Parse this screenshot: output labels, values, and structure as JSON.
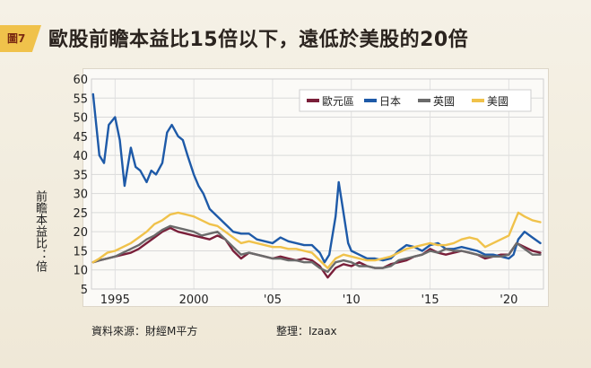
{
  "header": {
    "figure_tag": "圖7",
    "title": "歐股前瞻本益比15倍以下，遠低於美股的20倍"
  },
  "footer": {
    "source": "資料來源：財經M平方",
    "editor": "整理：Izaax"
  },
  "chart_data": {
    "type": "line",
    "title": "歐股前瞻本益比15倍以下，遠低於美股的20倍",
    "ylabel": "前瞻本益比：倍",
    "xlabel": "",
    "ylim": [
      5,
      60
    ],
    "xlim": [
      1993.5,
      2022.2
    ],
    "yticks": [
      5,
      10,
      15,
      20,
      25,
      30,
      35,
      40,
      45,
      50,
      55,
      60
    ],
    "xticks": [
      {
        "value": 1995,
        "label": "1995"
      },
      {
        "value": 2000,
        "label": "2000"
      },
      {
        "value": 2005,
        "label": "'05"
      },
      {
        "value": 2010,
        "label": "'10"
      },
      {
        "value": 2015,
        "label": "'15"
      },
      {
        "value": 2020,
        "label": "'20"
      }
    ],
    "grid": true,
    "legend_position": "top-right",
    "series": [
      {
        "name": "歐元區",
        "color": "#7a1f3a",
        "x": [
          1993.6,
          1994,
          1994.5,
          1995,
          1995.5,
          1996,
          1996.5,
          1997,
          1997.5,
          1998,
          1998.5,
          1999,
          1999.5,
          2000,
          2000.5,
          2001,
          2001.5,
          2002,
          2002.5,
          2003,
          2003.5,
          2004,
          2004.5,
          2005,
          2005.5,
          2006,
          2006.5,
          2007,
          2007.5,
          2008,
          2008.5,
          2009,
          2009.5,
          2010,
          2010.5,
          2011,
          2011.5,
          2012,
          2012.5,
          2013,
          2013.5,
          2014,
          2014.5,
          2015,
          2015.5,
          2016,
          2016.5,
          2017,
          2017.5,
          2018,
          2018.5,
          2019,
          2019.5,
          2020,
          2020.5,
          2021,
          2021.5,
          2022
        ],
        "values": [
          12,
          12.5,
          13,
          13.5,
          14,
          14.5,
          15.5,
          17,
          18.5,
          20,
          21,
          20,
          19.5,
          19,
          18.5,
          18,
          19,
          18,
          15,
          13,
          14.5,
          14,
          13.5,
          13,
          13.5,
          13,
          12.5,
          13,
          12.5,
          11,
          8,
          10.5,
          11.5,
          11,
          12,
          11,
          10.5,
          10.5,
          11.5,
          12,
          12.5,
          13.5,
          14,
          15.5,
          14.5,
          14,
          14.5,
          15,
          14.5,
          14,
          13,
          13.5,
          14,
          14,
          17,
          16,
          15,
          14.5
        ]
      },
      {
        "name": "日本",
        "color": "#1e5aa8",
        "x": [
          1993.6,
          1993.8,
          1994,
          1994.3,
          1994.6,
          1995,
          1995.3,
          1995.6,
          1996,
          1996.3,
          1996.6,
          1997,
          1997.3,
          1997.6,
          1998,
          1998.3,
          1998.6,
          1999,
          1999.3,
          1999.6,
          2000,
          2000.3,
          2000.6,
          2001,
          2001.5,
          2002,
          2002.5,
          2003,
          2003.5,
          2004,
          2004.5,
          2005,
          2005.5,
          2006,
          2006.5,
          2007,
          2007.5,
          2008,
          2008.3,
          2008.6,
          2009,
          2009.2,
          2009.5,
          2009.8,
          2010,
          2010.5,
          2011,
          2011.5,
          2012,
          2012.5,
          2013,
          2013.5,
          2014,
          2014.5,
          2015,
          2015.5,
          2016,
          2016.5,
          2017,
          2017.5,
          2018,
          2018.5,
          2019,
          2019.5,
          2020,
          2020.3,
          2020.6,
          2021,
          2021.5,
          2022
        ],
        "values": [
          56,
          48,
          40,
          38,
          48,
          50,
          44,
          32,
          42,
          37,
          36,
          33,
          36,
          35,
          38,
          46,
          48,
          45,
          44,
          40,
          35,
          32,
          30,
          26,
          24,
          22,
          20,
          19.5,
          19.5,
          18,
          17.5,
          17,
          18.5,
          17.5,
          17,
          16.5,
          16.5,
          14.5,
          12,
          14,
          24,
          33,
          25,
          17,
          15,
          14,
          13,
          13,
          12.5,
          13,
          15,
          16.5,
          16,
          15,
          16.5,
          17,
          15.5,
          15.5,
          16,
          15.5,
          15,
          14,
          14,
          13.5,
          13,
          14,
          18,
          20,
          18.5,
          17
        ]
      },
      {
        "name": "英國",
        "color": "#6b6b6b",
        "x": [
          1993.6,
          1994,
          1994.5,
          1995,
          1995.5,
          1996,
          1996.5,
          1997,
          1997.5,
          1998,
          1998.5,
          1999,
          1999.5,
          2000,
          2000.5,
          2001,
          2001.5,
          2002,
          2002.5,
          2003,
          2003.5,
          2004,
          2004.5,
          2005,
          2005.5,
          2006,
          2006.5,
          2007,
          2007.5,
          2008,
          2008.5,
          2009,
          2009.5,
          2010,
          2010.5,
          2011,
          2011.5,
          2012,
          2012.5,
          2013,
          2013.5,
          2014,
          2014.5,
          2015,
          2015.5,
          2016,
          2016.5,
          2017,
          2017.5,
          2018,
          2018.5,
          2019,
          2019.5,
          2020,
          2020.5,
          2021,
          2021.5,
          2022
        ],
        "values": [
          12,
          12.5,
          13,
          13.5,
          14.5,
          15.5,
          16.5,
          18,
          19,
          20.5,
          21.5,
          21,
          20.5,
          20,
          19,
          19.5,
          20,
          18,
          16,
          14,
          14.5,
          14,
          13.5,
          13,
          13,
          12.5,
          12.5,
          12,
          12,
          10.5,
          9.5,
          12,
          12.5,
          12,
          11,
          11,
          10.5,
          10.5,
          11,
          12.5,
          13,
          13.5,
          14,
          15,
          14.5,
          15.5,
          15,
          15,
          14.5,
          14,
          13.5,
          13.5,
          13.5,
          14,
          17,
          15.5,
          14,
          14
        ]
      },
      {
        "name": "美國",
        "color": "#f0c24b",
        "x": [
          1993.6,
          1994,
          1994.5,
          1995,
          1995.5,
          1996,
          1996.5,
          1997,
          1997.5,
          1998,
          1998.5,
          1999,
          1999.5,
          2000,
          2000.5,
          2001,
          2001.5,
          2002,
          2002.5,
          2003,
          2003.5,
          2004,
          2004.5,
          2005,
          2005.5,
          2006,
          2006.5,
          2007,
          2007.5,
          2008,
          2008.5,
          2009,
          2009.5,
          2010,
          2010.5,
          2011,
          2011.5,
          2012,
          2012.5,
          2013,
          2013.5,
          2014,
          2014.5,
          2015,
          2015.5,
          2016,
          2016.5,
          2017,
          2017.5,
          2018,
          2018.5,
          2019,
          2019.5,
          2020,
          2020.3,
          2020.6,
          2021,
          2021.5,
          2022
        ],
        "values": [
          12,
          13,
          14.5,
          15,
          16,
          17,
          18.5,
          20,
          22,
          23,
          24.5,
          25,
          24.5,
          24,
          23,
          22,
          21.5,
          20,
          18.5,
          17,
          17.5,
          17,
          16.5,
          16,
          16,
          15.5,
          15.5,
          15,
          14.5,
          12.5,
          10.5,
          13,
          14,
          13.5,
          13,
          12.5,
          12.5,
          13,
          13.5,
          14.5,
          15.5,
          16,
          16.5,
          17,
          16.5,
          16.5,
          17,
          18,
          18.5,
          18,
          16,
          17,
          18,
          19,
          22,
          25,
          24,
          23,
          22.5
        ]
      }
    ]
  }
}
